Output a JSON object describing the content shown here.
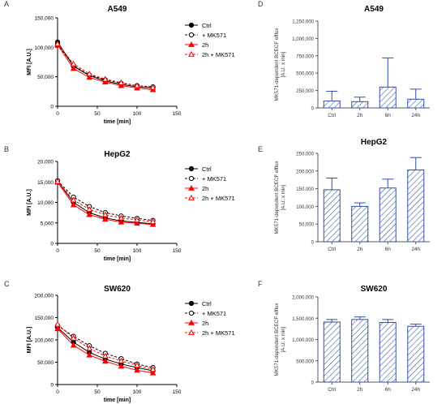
{
  "colors": {
    "black": "#000000",
    "red": "#ff0000",
    "blue": "#2f4f9f",
    "grey": "#555555"
  },
  "chart_data": [
    {
      "panel": "A",
      "type": "line",
      "title": "A549",
      "xlabel": "time [min]",
      "ylabel": "MFI [A.U.]",
      "xlim": [
        0,
        150
      ],
      "ylim": [
        0,
        150000
      ],
      "xticks": [
        "0",
        "50",
        "100",
        "150"
      ],
      "xtick_values": [
        0,
        50,
        100,
        150
      ],
      "yticks": [
        "0",
        "50,000",
        "100,000",
        "150,000"
      ],
      "ytick_values": [
        0,
        50000,
        100000,
        150000
      ],
      "x": [
        0,
        20,
        40,
        60,
        80,
        100,
        120
      ],
      "series": [
        {
          "name": "Ctrl",
          "values": [
            109000,
            68000,
            52000,
            43000,
            37000,
            33000,
            31000
          ]
        },
        {
          "name": "+ MK571",
          "values": [
            105000,
            69000,
            53000,
            45000,
            39000,
            35000,
            33000
          ]
        },
        {
          "name": "2h",
          "values": [
            104000,
            64000,
            49000,
            41000,
            35000,
            31000,
            28000
          ]
        },
        {
          "name": "2h + MK571",
          "values": [
            106000,
            72000,
            55000,
            46000,
            40000,
            35000,
            32000
          ]
        }
      ]
    },
    {
      "panel": "B",
      "type": "line",
      "title": "HepG2",
      "xlabel": "time [min]",
      "ylabel": "MFI [A.U.]",
      "xlim": [
        0,
        150
      ],
      "ylim": [
        0,
        20000
      ],
      "xticks": [
        "0",
        "50",
        "100",
        "150"
      ],
      "xtick_values": [
        0,
        50,
        100,
        150
      ],
      "yticks": [
        "0",
        "5,000",
        "10,000",
        "15,000",
        "20,000"
      ],
      "ytick_values": [
        0,
        5000,
        10000,
        15000,
        20000
      ],
      "x": [
        0,
        20,
        40,
        60,
        80,
        100,
        120
      ],
      "series": [
        {
          "name": "Ctrl",
          "values": [
            15200,
            10000,
            7500,
            6200,
            5500,
            5100,
            4800
          ]
        },
        {
          "name": "+ MK571",
          "values": [
            15300,
            11300,
            9000,
            7500,
            6700,
            6100,
            5600
          ]
        },
        {
          "name": "2h",
          "values": [
            14900,
            9400,
            7000,
            5900,
            5200,
            4900,
            4600
          ]
        },
        {
          "name": "2h + MK571",
          "values": [
            15100,
            10600,
            8300,
            7000,
            6200,
            5700,
            5300
          ]
        }
      ]
    },
    {
      "panel": "C",
      "type": "line",
      "title": "SW620",
      "xlabel": "time [min]",
      "ylabel": "MFI [A.U.]",
      "xlim": [
        0,
        150
      ],
      "ylim": [
        0,
        200000
      ],
      "xticks": [
        "0",
        "50",
        "100",
        "150"
      ],
      "xtick_values": [
        0,
        50,
        100,
        150
      ],
      "yticks": [
        "0",
        "50,000",
        "100,000",
        "150,000",
        "200,000"
      ],
      "ytick_values": [
        0,
        50000,
        100000,
        150000,
        200000
      ],
      "x": [
        0,
        20,
        40,
        60,
        80,
        100,
        120
      ],
      "series": [
        {
          "name": "Ctrl",
          "values": [
            128000,
            95000,
            72000,
            57000,
            46000,
            38000,
            31000
          ]
        },
        {
          "name": "+ MK571",
          "values": [
            132000,
            108000,
            87000,
            70000,
            58000,
            46000,
            38000
          ]
        },
        {
          "name": "2h",
          "values": [
            125000,
            88000,
            66000,
            52000,
            41000,
            32000,
            26000
          ]
        },
        {
          "name": "2h + MK571",
          "values": [
            135000,
            104000,
            81000,
            64000,
            53000,
            43000,
            34000
          ]
        }
      ]
    },
    {
      "panel": "D",
      "type": "bar",
      "title": "A549",
      "ylabel": "MK571-dependent BCECF efflux [A.U. x min]",
      "categories": [
        "Ctrl",
        "2h",
        "6h",
        "24h"
      ],
      "values": [
        100000,
        90000,
        300000,
        125000
      ],
      "errors": [
        140000,
        65000,
        420000,
        145000
      ],
      "ylim": [
        0,
        1250000
      ],
      "yticks": [
        "0",
        "250,000",
        "500,000",
        "750,000",
        "1,000,000",
        "1,250,000"
      ],
      "ytick_values": [
        0,
        250000,
        500000,
        750000,
        1000000,
        1250000
      ]
    },
    {
      "panel": "E",
      "type": "bar",
      "title": "HepG2",
      "ylabel": "MK571-dependent BCECF efflux [A.U. x min]",
      "categories": [
        "Ctrl",
        "2h",
        "6h",
        "24h"
      ],
      "values": [
        147000,
        100000,
        152000,
        203000
      ],
      "errors": [
        33000,
        10000,
        25000,
        35000
      ],
      "ylim": [
        0,
        250000
      ],
      "yticks": [
        "0",
        "50,000",
        "100,000",
        "150,000",
        "200,000",
        "250,000"
      ],
      "ytick_values": [
        0,
        50000,
        100000,
        150000,
        200000,
        250000
      ]
    },
    {
      "panel": "F",
      "type": "bar",
      "title": "SW620",
      "ylabel": "MK571-dependent BCECF efflux [A.U. x min]",
      "categories": [
        "Ctrl",
        "2h",
        "6h",
        "24h"
      ],
      "values": [
        1410000,
        1470000,
        1400000,
        1310000
      ],
      "errors": [
        60000,
        60000,
        70000,
        50000
      ],
      "ylim": [
        0,
        2000000
      ],
      "yticks": [
        "0",
        "500,000",
        "1,000,000",
        "1,500,000",
        "2,000,000"
      ],
      "ytick_values": [
        0,
        500000,
        1000000,
        1500000,
        2000000
      ]
    }
  ]
}
